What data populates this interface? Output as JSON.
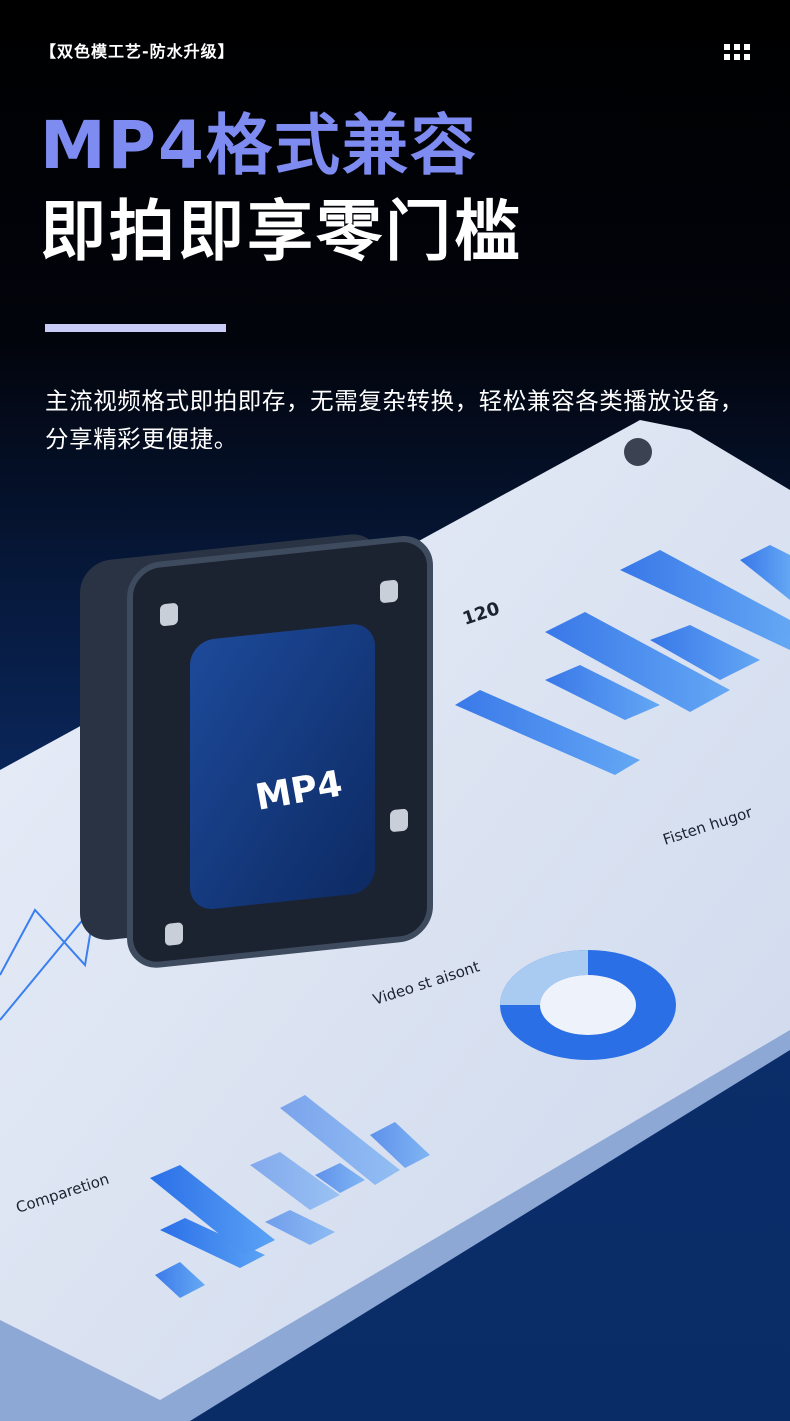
{
  "header": {
    "tag": "【双色模工艺-防水升级】"
  },
  "headline": {
    "line1": "MP4格式兼容",
    "line2": "即拍即享零门槛"
  },
  "description": "主流视频格式即拍即存，无需复杂转换，轻松兼容各类播放设备，分享精彩更便捷。",
  "illustration": {
    "chip_label": "MP4",
    "labels": [
      "120",
      "Video st aisont",
      "Fisten hugor",
      "Comparetion"
    ]
  }
}
